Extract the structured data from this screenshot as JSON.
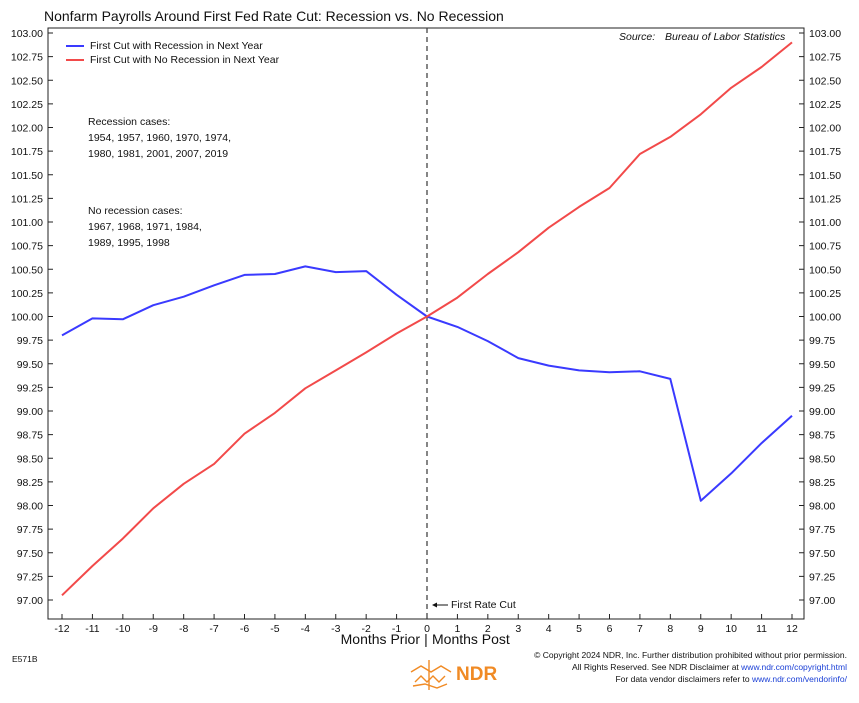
{
  "chart_data": {
    "type": "line",
    "title": "Nonfarm Payrolls Around First Fed Rate Cut: Recession vs. No Recession",
    "xlabel_left": "Months Prior",
    "xlabel_sep": "|",
    "xlabel_right": "Months Post",
    "x": [
      -12,
      -11,
      -10,
      -9,
      -8,
      -7,
      -6,
      -5,
      -4,
      -3,
      -2,
      -1,
      0,
      1,
      2,
      3,
      4,
      5,
      6,
      7,
      8,
      9,
      10,
      11,
      12
    ],
    "xlim": [
      -12,
      12
    ],
    "ylim": [
      97.0,
      103.0
    ],
    "y_ticks": [
      "97.00",
      "97.25",
      "97.50",
      "97.75",
      "98.00",
      "98.25",
      "98.50",
      "98.75",
      "99.00",
      "99.25",
      "99.50",
      "99.75",
      "100.00",
      "100.25",
      "100.50",
      "100.75",
      "101.00",
      "101.25",
      "101.50",
      "101.75",
      "102.00",
      "102.25",
      "102.50",
      "102.75",
      "103.00"
    ],
    "grid": false,
    "legend_position": "top-left",
    "series": [
      {
        "name": "First Cut with Recession in Next Year",
        "color": "#3a3aff",
        "values": [
          99.8,
          99.98,
          99.97,
          100.12,
          100.21,
          100.33,
          100.44,
          100.45,
          100.53,
          100.47,
          100.48,
          100.23,
          100.0,
          99.89,
          99.74,
          99.56,
          99.48,
          99.43,
          99.41,
          99.42,
          99.34,
          98.05,
          98.34,
          98.66,
          98.95
        ]
      },
      {
        "name": "First Cut with No Recession in Next Year",
        "color": "#f24a4a",
        "values": [
          97.05,
          97.36,
          97.65,
          97.97,
          98.23,
          98.44,
          98.76,
          98.98,
          99.24,
          99.43,
          99.62,
          99.82,
          100.0,
          100.2,
          100.45,
          100.68,
          100.94,
          101.16,
          101.36,
          101.72,
          101.9,
          102.14,
          102.42,
          102.64,
          102.9
        ]
      }
    ],
    "source_label": "Source:",
    "source_name": "Bureau of Labor Statistics",
    "annotation_cut": "First Rate Cut",
    "recession_note_title": "Recession cases:",
    "recession_note_line1": "1954, 1957, 1960, 1970, 1974,",
    "recession_note_line2": "1980, 1981, 2001, 2007, 2019",
    "norecession_note_title": "No recession cases:",
    "norecession_note_line1": "1967, 1968, 1971, 1984,",
    "norecession_note_line2": "1989, 1995, 1998"
  },
  "footer": {
    "chart_id": "E571B",
    "brand": "NDR",
    "copyright": "© Copyright 2024 NDR, Inc. Further distribution prohibited without prior permission.",
    "disclaimer_prefix": "All Rights Reserved. See NDR Disclaimer at",
    "disclaimer_link": "www.ndr.com/copyright.html",
    "vendor_prefix": "For data vendor disclaimers refer to",
    "vendor_link": "www.ndr.com/vendorinfo/"
  },
  "colors": {
    "frame": "#222222",
    "brand_orange": "#f08a24"
  }
}
